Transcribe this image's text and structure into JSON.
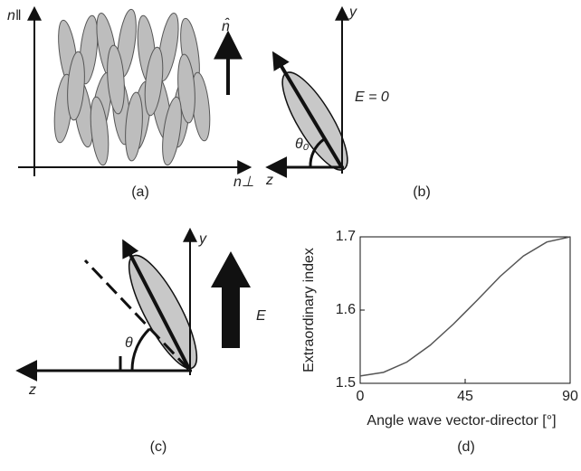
{
  "panels": {
    "a": {
      "label": "(a)",
      "y_axis": "n‖",
      "x_axis": "n⊥",
      "director": "n̂"
    },
    "b": {
      "label": "(b)",
      "y_axis": "y",
      "x_axis": "z",
      "field": "E = 0",
      "angle": "θ₀"
    },
    "c": {
      "label": "(c)",
      "y_axis": "y",
      "x_axis": "z",
      "field": "E",
      "angle": "θ"
    }
  },
  "chart_data": {
    "type": "line",
    "label": "(d)",
    "xlabel": "Angle wave vector-director [°]",
    "ylabel": "Extraordinary index",
    "x": [
      0,
      10,
      20,
      30,
      40,
      45,
      50,
      60,
      70,
      80,
      90
    ],
    "series": [
      {
        "color": "#555555",
        "values": [
          1.51,
          1.515,
          1.529,
          1.552,
          1.581,
          1.597,
          1.613,
          1.646,
          1.674,
          1.693,
          1.7
        ]
      }
    ],
    "xlim": [
      0,
      90
    ],
    "xticks": [
      0,
      45,
      90
    ],
    "ylim": [
      1.5,
      1.7
    ],
    "yticks": [
      1.5,
      1.6,
      1.7
    ]
  }
}
